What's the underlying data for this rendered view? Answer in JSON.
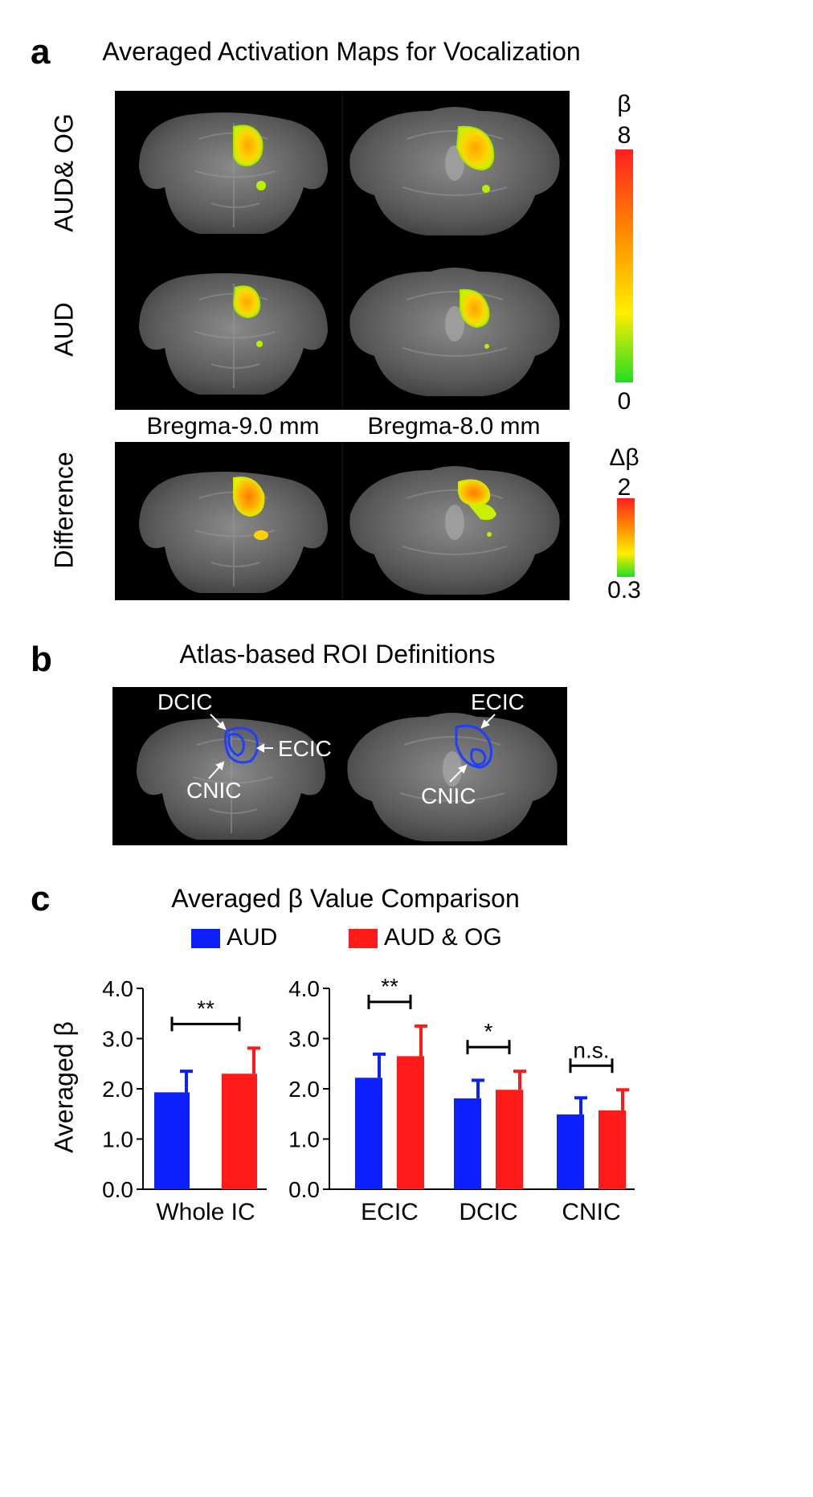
{
  "panel_a": {
    "letter": "a",
    "title": "Averaged Activation Maps for Vocalization",
    "row_labels": [
      "AUD& OG",
      "AUD",
      "Difference"
    ],
    "column_labels": [
      "Bregma-9.0 mm",
      "Bregma-8.0 mm"
    ],
    "colorbar_beta": {
      "symbol": "β",
      "max": "8",
      "min": "0",
      "colors": [
        "#ff2020",
        "#ff8800",
        "#ffee00",
        "#22dd22"
      ]
    },
    "colorbar_delta": {
      "symbol": "Δβ",
      "max": "2",
      "min": "0.3",
      "colors": [
        "#ff2020",
        "#ff8800",
        "#ffee00",
        "#22dd22"
      ]
    }
  },
  "panel_b": {
    "letter": "b",
    "title": "Atlas-based ROI Definitions",
    "left_labels": {
      "dcic": "DCIC",
      "ecic": "ECIC",
      "cnic": "CNIC"
    },
    "right_labels": {
      "ecic": "ECIC",
      "cnic": "CNIC"
    },
    "roi_color": "#1f3fff"
  },
  "panel_c": {
    "letter": "c",
    "title": "Averaged β Value Comparison",
    "legend": [
      {
        "name": "AUD",
        "color": "#0b1fff"
      },
      {
        "name": "AUD & OG",
        "color": "#ff1a1a"
      }
    ]
  },
  "chart_data": [
    {
      "type": "bar",
      "title": "",
      "xlabel": "",
      "ylabel": "Averaged β",
      "ylim": [
        0,
        4
      ],
      "yticks": [
        "0.0",
        "1.0",
        "2.0",
        "3.0",
        "4.0"
      ],
      "categories": [
        "Whole IC"
      ],
      "series": [
        {
          "name": "AUD",
          "values": [
            1.93
          ],
          "errors": [
            0.42
          ]
        },
        {
          "name": "AUD & OG",
          "values": [
            2.3
          ],
          "errors": [
            0.51
          ]
        }
      ],
      "significance": [
        "**"
      ]
    },
    {
      "type": "bar",
      "title": "",
      "xlabel": "",
      "ylabel": "",
      "ylim": [
        0,
        4
      ],
      "yticks": [
        "0.0",
        "1.0",
        "2.0",
        "3.0",
        "4.0"
      ],
      "categories": [
        "ECIC",
        "DCIC",
        "CNIC"
      ],
      "series": [
        {
          "name": "AUD",
          "values": [
            2.22,
            1.81,
            1.49
          ],
          "errors": [
            0.47,
            0.36,
            0.33
          ]
        },
        {
          "name": "AUD & OG",
          "values": [
            2.65,
            1.98,
            1.57
          ],
          "errors": [
            0.6,
            0.37,
            0.41
          ]
        }
      ],
      "significance": [
        "**",
        "*",
        "n.s."
      ]
    }
  ]
}
